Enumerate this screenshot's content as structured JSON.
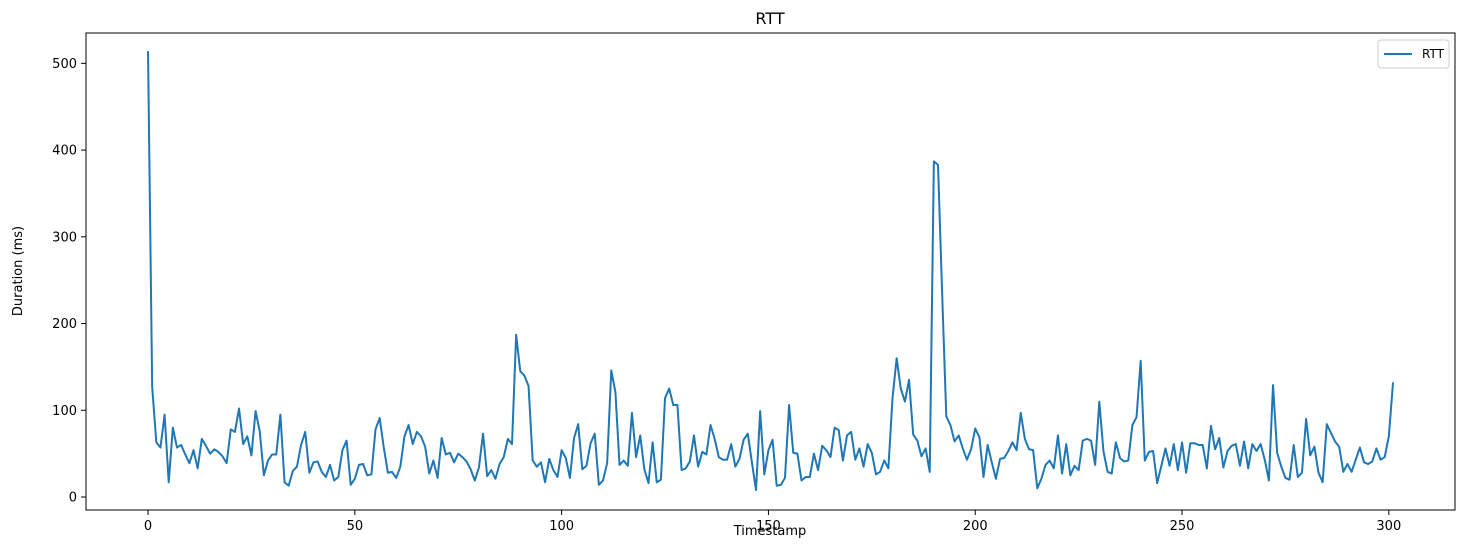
{
  "chart_data": {
    "type": "line",
    "title": "RTT",
    "xlabel": "Timestamp",
    "ylabel": "Duration (ms)",
    "xlim": [
      -15,
      316
    ],
    "ylim": [
      -15,
      535
    ],
    "xticks": [
      0,
      50,
      100,
      150,
      200,
      250,
      300
    ],
    "yticks": [
      0,
      100,
      200,
      300,
      400,
      500
    ],
    "grid": false,
    "legend": {
      "position": "top-right",
      "entries": [
        "RTT"
      ]
    },
    "series": [
      {
        "name": "RTT",
        "color": "#1f77b4",
        "x": [
          0,
          1,
          2,
          3,
          4,
          5,
          6,
          7,
          8,
          9,
          10,
          11,
          12,
          13,
          14,
          15,
          16,
          17,
          18,
          19,
          20,
          21,
          22,
          23,
          24,
          25,
          26,
          27,
          28,
          29,
          30,
          31,
          32,
          33,
          34,
          35,
          36,
          37,
          38,
          39,
          40,
          41,
          42,
          43,
          44,
          45,
          46,
          47,
          48,
          49,
          50,
          51,
          52,
          53,
          54,
          55,
          56,
          57,
          58,
          59,
          60,
          61,
          62,
          63,
          64,
          65,
          66,
          67,
          68,
          69,
          70,
          71,
          72,
          73,
          74,
          75,
          76,
          77,
          78,
          79,
          80,
          81,
          82,
          83,
          84,
          85,
          86,
          87,
          88,
          89,
          90,
          91,
          92,
          93,
          94,
          95,
          96,
          97,
          98,
          99,
          100,
          101,
          102,
          103,
          104,
          105,
          106,
          107,
          108,
          109,
          110,
          111,
          112,
          113,
          114,
          115,
          116,
          117,
          118,
          119,
          120,
          121,
          122,
          123,
          124,
          125,
          126,
          127,
          128,
          129,
          130,
          131,
          132,
          133,
          134,
          135,
          136,
          137,
          138,
          139,
          140,
          141,
          142,
          143,
          144,
          145,
          146,
          147,
          148,
          149,
          150,
          151,
          152,
          153,
          154,
          155,
          156,
          157,
          158,
          159,
          160,
          161,
          162,
          163,
          164,
          165,
          166,
          167,
          168,
          169,
          170,
          171,
          172,
          173,
          174,
          175,
          176,
          177,
          178,
          179,
          180,
          181,
          182,
          183,
          184,
          185,
          186,
          187,
          188,
          189,
          190,
          191,
          192,
          193,
          194,
          195,
          196,
          197,
          198,
          199,
          200,
          201,
          202,
          203,
          204,
          205,
          206,
          207,
          208,
          209,
          210,
          211,
          212,
          213,
          214,
          215,
          216,
          217,
          218,
          219,
          220,
          221,
          222,
          223,
          224,
          225,
          226,
          227,
          228,
          229,
          230,
          231,
          232,
          233,
          234,
          235,
          236,
          237,
          238,
          239,
          240,
          241,
          242,
          243,
          244,
          245,
          246,
          247,
          248,
          249,
          250,
          251,
          252,
          253,
          254,
          255,
          256,
          257,
          258,
          259,
          260,
          261,
          262,
          263,
          264,
          265,
          266,
          267,
          268,
          269,
          270,
          271,
          272,
          273,
          274,
          275,
          276,
          277,
          278,
          279,
          280,
          281,
          282,
          283,
          284,
          285,
          286,
          287,
          288,
          289,
          290,
          291,
          292,
          293,
          294,
          295,
          296,
          297,
          298,
          299,
          300,
          301
        ],
        "values": [
          513,
          127,
          63,
          57,
          95,
          17,
          80,
          57,
          60,
          49,
          39,
          54,
          33,
          67,
          59,
          50,
          55,
          52,
          47,
          39,
          78,
          75,
          102,
          61,
          70,
          48,
          99,
          76,
          25,
          42,
          49,
          49,
          95,
          17,
          13,
          30,
          35,
          60,
          75,
          28,
          40,
          41,
          29,
          23,
          37,
          19,
          23,
          54,
          65,
          14,
          21,
          37,
          38,
          25,
          26,
          78,
          91,
          57,
          28,
          29,
          22,
          35,
          70,
          83,
          61,
          75,
          70,
          58,
          27,
          42,
          22,
          68,
          49,
          51,
          40,
          50,
          46,
          41,
          32,
          19,
          34,
          73,
          24,
          31,
          21,
          38,
          46,
          67,
          61,
          187,
          145,
          140,
          128,
          42,
          35,
          40,
          17,
          44,
          31,
          23,
          54,
          45,
          22,
          68,
          84,
          32,
          36,
          62,
          73,
          14,
          19,
          39,
          146,
          121,
          37,
          42,
          36,
          97,
          46,
          71,
          32,
          16,
          63,
          17,
          20,
          114,
          125,
          106,
          106,
          31,
          33,
          41,
          71,
          35,
          52,
          49,
          83,
          67,
          46,
          43,
          43,
          61,
          35,
          44,
          66,
          73,
          40,
          8,
          99,
          26,
          54,
          66,
          13,
          14,
          22,
          106,
          51,
          50,
          19,
          23,
          23,
          50,
          31,
          59,
          54,
          46,
          80,
          77,
          42,
          71,
          75,
          43,
          56,
          35,
          61,
          51,
          26,
          29,
          42,
          33,
          114,
          160,
          125,
          110,
          135,
          72,
          65,
          47,
          56,
          29,
          387,
          383,
          235,
          93,
          83,
          64,
          71,
          56,
          43,
          55,
          79,
          69,
          23,
          60,
          40,
          21,
          44,
          45,
          53,
          63,
          54,
          97,
          67,
          55,
          54,
          10,
          21,
          37,
          42,
          33,
          71,
          27,
          61,
          25,
          36,
          31,
          65,
          67,
          65,
          37,
          110,
          53,
          29,
          27,
          63,
          45,
          41,
          42,
          83,
          92,
          157,
          42,
          52,
          53,
          16,
          36,
          56,
          36,
          61,
          31,
          63,
          28,
          62,
          62,
          60,
          60,
          33,
          82,
          55,
          68,
          34,
          53,
          59,
          61,
          36,
          64,
          33,
          61,
          53,
          61,
          43,
          19,
          129,
          51,
          35,
          22,
          20,
          60,
          23,
          28,
          90,
          48,
          58,
          28,
          17,
          84,
          74,
          64,
          58,
          29,
          38,
          29,
          43,
          57,
          40,
          38,
          41,
          56,
          43,
          46,
          70,
          131
        ]
      }
    ]
  }
}
